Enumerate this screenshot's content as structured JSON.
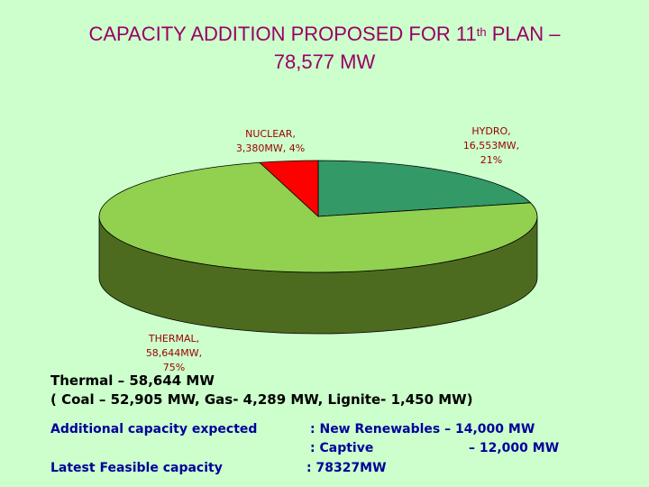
{
  "title": {
    "line1_prefix": "CAPACITY ADDITION PROPOSED FOR  11",
    "line1_sup": "th",
    "line1_suffix": "  PLAN –",
    "line2": "78,577 MW"
  },
  "chart_data": {
    "type": "pie",
    "style": "3d",
    "slices": [
      {
        "label_lines": [
          "HYDRO,",
          "16,553MW,",
          "21%"
        ],
        "value": 16553,
        "percent": 21,
        "color": "#339966",
        "side_color": "#1f6b45"
      },
      {
        "label_lines": [
          "THERMAL,",
          "58,644MW,",
          "75%"
        ],
        "value": 58644,
        "percent": 75,
        "color": "#92d050",
        "side_color": "#4d6b1f"
      },
      {
        "label_lines": [
          "NUCLEAR,",
          "3,380MW, 4%"
        ],
        "value": 3380,
        "percent": 4,
        "color": "#ff0000",
        "side_color": "#990000"
      }
    ]
  },
  "details": {
    "thermal_line": "Thermal – 58,644 MW",
    "breakdown_line": "( Coal – 52,905 MW, Gas- 4,289 MW, Lignite- 1,450 MW)",
    "additional_label": "Additional capacity expected",
    "renewables": ": New Renewables – 14,000 MW",
    "captive_label": ": Captive",
    "captive_value": "– 12,000 MW",
    "feasible_label": "Latest Feasible capacity",
    "feasible_value": ": 78327MW"
  }
}
